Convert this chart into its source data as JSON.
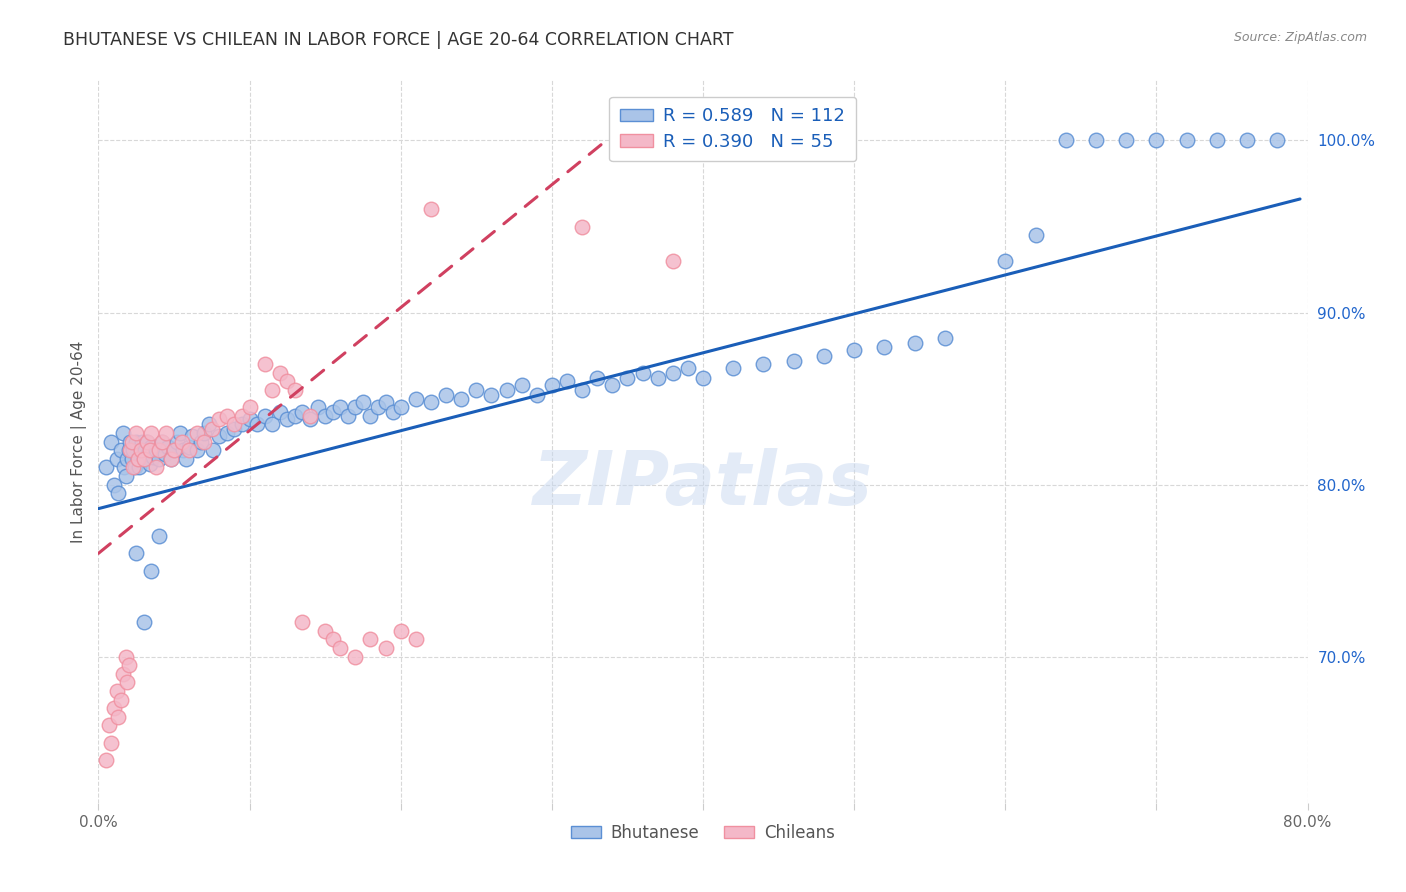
{
  "title": "BHUTANESE VS CHILEAN IN LABOR FORCE | AGE 20-64 CORRELATION CHART",
  "source": "Source: ZipAtlas.com",
  "ylabel": "In Labor Force | Age 20-64",
  "watermark": "ZIPatlas",
  "xlim": [
    0.0,
    0.8
  ],
  "ylim": [
    0.615,
    1.035
  ],
  "x_ticks": [
    0.0,
    0.1,
    0.2,
    0.3,
    0.4,
    0.5,
    0.6,
    0.7,
    0.8
  ],
  "y_ticks_right": [
    0.7,
    0.8,
    0.9,
    1.0
  ],
  "y_tick_labels_right": [
    "70.0%",
    "80.0%",
    "90.0%",
    "100.0%"
  ],
  "legend_blue_label": "Bhutanese",
  "legend_pink_label": "Chileans",
  "R_blue": "0.589",
  "N_blue": "112",
  "R_pink": "0.390",
  "N_pink": "55",
  "blue_color": "#5b8fd4",
  "pink_color": "#f090a0",
  "blue_line_color": "#1a5eb8",
  "pink_line_color": "#d04060",
  "blue_marker_face": "#aac4e8",
  "pink_marker_face": "#f4b8c8",
  "background_color": "#ffffff",
  "grid_color": "#d8d8d8",
  "title_color": "#333333",
  "blue_scatter_x": [
    0.005,
    0.008,
    0.01,
    0.012,
    0.013,
    0.015,
    0.016,
    0.017,
    0.018,
    0.019,
    0.02,
    0.021,
    0.022,
    0.023,
    0.024,
    0.025,
    0.026,
    0.027,
    0.028,
    0.029,
    0.03,
    0.031,
    0.032,
    0.033,
    0.034,
    0.035,
    0.036,
    0.038,
    0.04,
    0.042,
    0.044,
    0.046,
    0.048,
    0.05,
    0.052,
    0.054,
    0.056,
    0.058,
    0.06,
    0.062,
    0.065,
    0.068,
    0.07,
    0.073,
    0.076,
    0.08,
    0.085,
    0.09,
    0.095,
    0.1,
    0.105,
    0.11,
    0.115,
    0.12,
    0.125,
    0.13,
    0.135,
    0.14,
    0.145,
    0.15,
    0.155,
    0.16,
    0.165,
    0.17,
    0.175,
    0.18,
    0.185,
    0.19,
    0.195,
    0.2,
    0.21,
    0.22,
    0.23,
    0.24,
    0.25,
    0.26,
    0.27,
    0.28,
    0.29,
    0.3,
    0.31,
    0.32,
    0.33,
    0.34,
    0.35,
    0.36,
    0.37,
    0.38,
    0.39,
    0.4,
    0.42,
    0.44,
    0.46,
    0.48,
    0.5,
    0.52,
    0.54,
    0.56,
    0.6,
    0.62,
    0.64,
    0.66,
    0.68,
    0.7,
    0.72,
    0.74,
    0.76,
    0.78,
    0.025,
    0.03,
    0.035,
    0.04
  ],
  "blue_scatter_y": [
    0.81,
    0.825,
    0.8,
    0.815,
    0.795,
    0.82,
    0.83,
    0.81,
    0.805,
    0.815,
    0.82,
    0.825,
    0.815,
    0.82,
    0.81,
    0.825,
    0.815,
    0.81,
    0.82,
    0.825,
    0.815,
    0.82,
    0.825,
    0.818,
    0.812,
    0.822,
    0.816,
    0.82,
    0.815,
    0.825,
    0.818,
    0.822,
    0.815,
    0.82,
    0.825,
    0.83,
    0.82,
    0.815,
    0.822,
    0.828,
    0.82,
    0.825,
    0.83,
    0.835,
    0.82,
    0.828,
    0.83,
    0.832,
    0.835,
    0.838,
    0.835,
    0.84,
    0.835,
    0.842,
    0.838,
    0.84,
    0.842,
    0.838,
    0.845,
    0.84,
    0.842,
    0.845,
    0.84,
    0.845,
    0.848,
    0.84,
    0.845,
    0.848,
    0.842,
    0.845,
    0.85,
    0.848,
    0.852,
    0.85,
    0.855,
    0.852,
    0.855,
    0.858,
    0.852,
    0.858,
    0.86,
    0.855,
    0.862,
    0.858,
    0.862,
    0.865,
    0.862,
    0.865,
    0.868,
    0.862,
    0.868,
    0.87,
    0.872,
    0.875,
    0.878,
    0.88,
    0.882,
    0.885,
    0.93,
    0.945,
    1.0,
    1.0,
    1.0,
    1.0,
    1.0,
    1.0,
    1.0,
    1.0,
    0.76,
    0.72,
    0.75,
    0.77
  ],
  "pink_scatter_x": [
    0.005,
    0.007,
    0.008,
    0.01,
    0.012,
    0.013,
    0.015,
    0.016,
    0.018,
    0.019,
    0.02,
    0.021,
    0.022,
    0.023,
    0.025,
    0.026,
    0.028,
    0.03,
    0.032,
    0.034,
    0.035,
    0.038,
    0.04,
    0.042,
    0.045,
    0.048,
    0.05,
    0.055,
    0.06,
    0.065,
    0.07,
    0.075,
    0.08,
    0.085,
    0.09,
    0.095,
    0.1,
    0.11,
    0.115,
    0.12,
    0.125,
    0.13,
    0.135,
    0.14,
    0.15,
    0.155,
    0.16,
    0.17,
    0.18,
    0.19,
    0.2,
    0.21,
    0.22,
    0.32,
    0.38
  ],
  "pink_scatter_y": [
    0.64,
    0.66,
    0.65,
    0.67,
    0.68,
    0.665,
    0.675,
    0.69,
    0.7,
    0.685,
    0.695,
    0.82,
    0.825,
    0.81,
    0.83,
    0.815,
    0.82,
    0.815,
    0.825,
    0.82,
    0.83,
    0.81,
    0.82,
    0.825,
    0.83,
    0.815,
    0.82,
    0.825,
    0.82,
    0.83,
    0.825,
    0.832,
    0.838,
    0.84,
    0.835,
    0.84,
    0.845,
    0.87,
    0.855,
    0.865,
    0.86,
    0.855,
    0.72,
    0.84,
    0.715,
    0.71,
    0.705,
    0.7,
    0.71,
    0.705,
    0.715,
    0.71,
    0.96,
    0.95,
    0.93
  ],
  "blue_trend_x": [
    0.0,
    0.795
  ],
  "blue_trend_y": [
    0.786,
    0.966
  ],
  "pink_trend_x": [
    0.0,
    0.35
  ],
  "pink_trend_y": [
    0.76,
    1.01
  ]
}
